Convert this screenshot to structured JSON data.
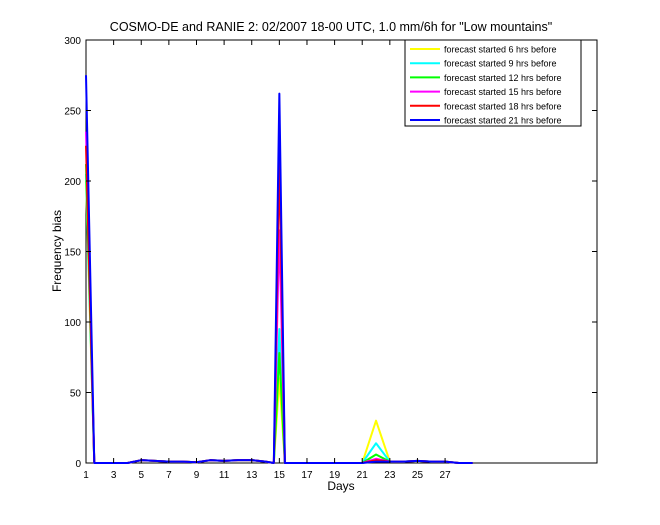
{
  "chart_data": {
    "type": "line",
    "title": "COSMO-DE and RANIE 2: 02/2007 18-00 UTC, 1.0 mm/6h for \"Low mountains\"",
    "xlabel": "Days",
    "ylabel": "Frequency bias",
    "xlim": [
      1,
      38
    ],
    "ylim": [
      0,
      300
    ],
    "x_ticks": [
      1,
      3,
      5,
      7,
      9,
      11,
      13,
      15,
      17,
      19,
      21,
      23,
      25,
      27
    ],
    "y_ticks": [
      0,
      50,
      100,
      150,
      200,
      250,
      300
    ],
    "grid": false,
    "legend_position": "top-right",
    "x": [
      1,
      1.6,
      2,
      3,
      4,
      5,
      6,
      7,
      8,
      9,
      10,
      11,
      12,
      13,
      14,
      14.6,
      15,
      15.4,
      16,
      17,
      18,
      19,
      20,
      21,
      22,
      23,
      24,
      25,
      26,
      27,
      28,
      29
    ],
    "series": [
      {
        "name": "forecast started 6 hrs before",
        "color": "#ffff00",
        "values": [
          200,
          0,
          0,
          0,
          0,
          2,
          1.5,
          1,
          1,
          0.5,
          2,
          1.5,
          2,
          2,
          1,
          0,
          60,
          0,
          0,
          0,
          0,
          0,
          0,
          0,
          30,
          1,
          1,
          1.5,
          1,
          1,
          0,
          0
        ]
      },
      {
        "name": "forecast started 9 hrs before",
        "color": "#00ffff",
        "values": [
          205,
          0,
          0,
          0,
          0,
          2,
          1.5,
          1,
          1,
          0.5,
          2,
          1.5,
          2,
          2,
          1,
          0,
          95,
          0,
          0,
          0,
          0,
          0,
          0,
          0,
          14,
          1,
          1,
          1.5,
          1,
          1,
          0,
          0
        ]
      },
      {
        "name": "forecast started 12 hrs before",
        "color": "#00ff00",
        "values": [
          212,
          0,
          0,
          0,
          0,
          2,
          1.5,
          1,
          1,
          0.5,
          2,
          1.5,
          2,
          2,
          1,
          0,
          78,
          0,
          0,
          0,
          0,
          0,
          0,
          0,
          6,
          1,
          1,
          1.5,
          1,
          1,
          0,
          0
        ]
      },
      {
        "name": "forecast started 15 hrs before",
        "color": "#ff00ff",
        "values": [
          235,
          0,
          0,
          0,
          0,
          2,
          1.5,
          1,
          1,
          0.5,
          2,
          1.5,
          2,
          2,
          1,
          0,
          165,
          0,
          0,
          0,
          0,
          0,
          0,
          0,
          3,
          1,
          1,
          1.5,
          1,
          1,
          0,
          0
        ]
      },
      {
        "name": "forecast started 18 hrs before",
        "color": "#ff0000",
        "values": [
          225,
          0,
          0,
          0,
          0,
          2,
          1.5,
          1,
          1,
          0.5,
          2,
          1.5,
          2,
          2,
          1,
          0,
          215,
          0,
          0,
          0,
          0,
          0,
          0,
          0,
          2,
          1,
          1,
          1.5,
          1,
          1,
          0,
          0
        ]
      },
      {
        "name": "forecast started 21 hrs before",
        "color": "#0000ff",
        "values": [
          275,
          0,
          0,
          0,
          0,
          2,
          1.5,
          1,
          1,
          0.5,
          2,
          1.5,
          2,
          2,
          1,
          0,
          262,
          0,
          0,
          0,
          0,
          0,
          0,
          0,
          1,
          1,
          1,
          1.5,
          1,
          1,
          0,
          0
        ]
      }
    ]
  }
}
